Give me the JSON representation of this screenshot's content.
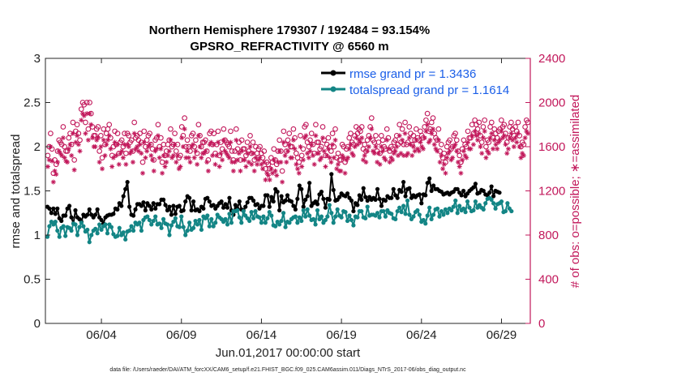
{
  "chart_data": {
    "type": "line",
    "title_line1": "Northern Hemisphere 179307 / 192484 = 93.154%",
    "title_line2": "GPSRO_REFRACTIVITY @ 6560 m",
    "xlabel": "Jun.01,2017 00:00:00 start",
    "ylabel_left": "rmse and totalspread",
    "ylabel_right": "# of obs: o=possible; ∗=assimilated",
    "footnote": "data file: /Users/raeder/DAI/ATM_forcXX/CAM6_setup/f.e21.FHIST_BGC.f09_025.CAM6assim.011/Diags_NTrS_2017-06/obs_diag_output.nc",
    "x_range": [
      0.5,
      30.8
    ],
    "ylim_left": [
      0,
      3
    ],
    "ylim_right": [
      0,
      2400
    ],
    "x_ticks": [
      {
        "v": 4,
        "label": "06/04"
      },
      {
        "v": 9,
        "label": "06/09"
      },
      {
        "v": 14,
        "label": "06/14"
      },
      {
        "v": 19,
        "label": "06/19"
      },
      {
        "v": 24,
        "label": "06/24"
      },
      {
        "v": 29,
        "label": "06/29"
      }
    ],
    "y_ticks_left": [
      "0",
      "0.5",
      "1",
      "1.5",
      "2",
      "2.5",
      "3"
    ],
    "y_ticks_right": [
      "0",
      "400",
      "800",
      "1200",
      "1600",
      "2000",
      "2400"
    ],
    "x_start": 0.625,
    "x_step": 0.125,
    "series": [
      {
        "name": "rmse",
        "legend": "rmse grand pr = 1.3436",
        "color": "#000000",
        "values": [
          1.32,
          1.3,
          1.25,
          1.3,
          1.24,
          1.3,
          1.19,
          1.16,
          1.22,
          1.22,
          1.3,
          1.33,
          1.2,
          1.13,
          1.28,
          1.2,
          1.18,
          1.15,
          1.23,
          1.21,
          1.23,
          1.29,
          1.23,
          1.2,
          1.23,
          1.29,
          1.2,
          1.17,
          1.13,
          1.2,
          1.22,
          1.23,
          1.23,
          1.24,
          1.3,
          1.29,
          1.36,
          1.33,
          1.44,
          1.52,
          1.6,
          1.32,
          1.23,
          1.22,
          1.29,
          1.35,
          1.35,
          1.33,
          1.37,
          1.28,
          1.36,
          1.33,
          1.29,
          1.36,
          1.3,
          1.35,
          1.35,
          1.4,
          1.4,
          1.34,
          1.28,
          1.32,
          1.23,
          1.33,
          1.24,
          1.32,
          1.33,
          1.27,
          1.28,
          1.38,
          1.44,
          1.42,
          1.28,
          1.38,
          1.28,
          1.29,
          1.27,
          1.32,
          1.3,
          1.41,
          1.42,
          1.38,
          1.33,
          1.34,
          1.3,
          1.33,
          1.36,
          1.38,
          1.31,
          1.35,
          1.31,
          1.42,
          1.28,
          1.23,
          1.34,
          1.3,
          1.38,
          1.29,
          1.28,
          1.32,
          1.37,
          1.42,
          1.42,
          1.39,
          1.34,
          1.35,
          1.3,
          1.33,
          1.33,
          1.45,
          1.45,
          1.32,
          1.43,
          1.38,
          1.52,
          1.49,
          1.28,
          1.44,
          1.37,
          1.39,
          1.45,
          1.39,
          1.38,
          1.33,
          1.29,
          1.41,
          1.56,
          1.52,
          1.32,
          1.4,
          1.44,
          1.59,
          1.33,
          1.36,
          1.38,
          1.35,
          1.46,
          1.49,
          1.41,
          1.31,
          1.41,
          1.4,
          1.69,
          1.51,
          1.39,
          1.4,
          1.43,
          1.47,
          1.45,
          1.44,
          1.47,
          1.42,
          1.39,
          1.27,
          1.36,
          1.34,
          1.45,
          1.4,
          1.53,
          1.43,
          1.39,
          1.43,
          1.4,
          1.42,
          1.4,
          1.52,
          1.41,
          1.33,
          1.4,
          1.39,
          1.44,
          1.42,
          1.42,
          1.52,
          1.45,
          1.42,
          1.51,
          1.49,
          1.6,
          1.44,
          1.52,
          1.53,
          1.42,
          1.45,
          1.43,
          1.45,
          1.46,
          1.36,
          1.46,
          1.45,
          1.59,
          1.64,
          1.5,
          1.56,
          1.52,
          1.52,
          1.5,
          1.49,
          1.46,
          1.47,
          1.48,
          1.46,
          1.48,
          1.49,
          1.52,
          1.52,
          1.48,
          1.45,
          1.5,
          1.44,
          1.47,
          1.5,
          1.52,
          1.54,
          1.58,
          1.47,
          1.48,
          1.51,
          1.5,
          1.46,
          1.45,
          1.48,
          1.55,
          1.44,
          1.5,
          1.49,
          1.48
        ]
      },
      {
        "name": "totalspread",
        "legend": "totalspread grand pr = 1.1614",
        "color": "#138585",
        "values": [
          0.98,
          1.1,
          1.15,
          1.12,
          1.15,
          1.05,
          0.98,
          1.08,
          1.1,
          0.99,
          1.09,
          1.08,
          1.05,
          1.13,
          1.12,
          1.0,
          1.09,
          1.14,
          1.1,
          1.04,
          1.06,
          0.92,
          1.0,
          1.05,
          1.07,
          1.02,
          1.12,
          1.06,
          1.1,
          1.12,
          1.02,
          1.12,
          1.09,
          1.01,
          0.98,
          0.99,
          1.08,
          1.0,
          1.03,
          0.95,
          1.04,
          1.05,
          1.1,
          1.05,
          1.14,
          1.12,
          1.14,
          1.05,
          1.17,
          1.2,
          1.21,
          1.17,
          1.12,
          1.16,
          1.21,
          1.12,
          1.13,
          1.08,
          1.18,
          1.13,
          1.12,
          1.0,
          1.11,
          1.15,
          1.19,
          1.1,
          1.09,
          1.21,
          1.09,
          1.0,
          1.05,
          1.14,
          1.06,
          1.08,
          1.16,
          1.12,
          1.17,
          1.06,
          1.21,
          1.19,
          1.22,
          1.1,
          1.18,
          1.1,
          1.14,
          1.23,
          1.2,
          1.18,
          1.15,
          1.18,
          1.12,
          1.24,
          1.14,
          1.27,
          1.27,
          1.28,
          1.2,
          1.14,
          1.27,
          1.22,
          1.19,
          1.16,
          1.26,
          1.19,
          1.27,
          1.21,
          1.2,
          1.14,
          1.21,
          1.14,
          1.19,
          1.26,
          1.22,
          1.11,
          1.1,
          1.15,
          1.12,
          1.16,
          1.25,
          1.09,
          1.15,
          1.14,
          1.18,
          1.2,
          1.21,
          1.14,
          1.2,
          1.16,
          1.28,
          1.21,
          1.29,
          1.22,
          1.17,
          1.18,
          1.12,
          1.28,
          1.18,
          1.21,
          1.14,
          1.17,
          1.21,
          1.34,
          1.25,
          1.14,
          1.21,
          1.29,
          1.22,
          1.2,
          1.27,
          1.26,
          1.16,
          1.22,
          1.17,
          1.11,
          1.21,
          1.2,
          1.27,
          1.27,
          1.2,
          1.19,
          1.32,
          1.22,
          1.23,
          1.23,
          1.22,
          1.25,
          1.2,
          1.27,
          1.27,
          1.21,
          1.28,
          1.25,
          1.24,
          1.19,
          1.18,
          1.27,
          1.31,
          1.26,
          1.33,
          1.24,
          1.39,
          1.23,
          1.18,
          1.21,
          1.26,
          1.28,
          1.23,
          1.15,
          1.17,
          1.13,
          1.22,
          1.31,
          1.18,
          1.23,
          1.29,
          1.3,
          1.21,
          1.27,
          1.23,
          1.29,
          1.25,
          1.3,
          1.28,
          1.32,
          1.39,
          1.25,
          1.33,
          1.28,
          1.3,
          1.26,
          1.38,
          1.31,
          1.27,
          1.28,
          1.38,
          1.31,
          1.34,
          1.31,
          1.29,
          1.36,
          1.41,
          1.42,
          1.4,
          1.36,
          1.3,
          1.35,
          1.36,
          1.38,
          1.26,
          1.27,
          1.36,
          1.3,
          1.27
        ]
      }
    ],
    "obs_possible": [
      1520,
      1600,
      1720,
      1580,
      1360,
      1480,
      1440,
      1560,
      1660,
      1640,
      1620,
      1780,
      1600,
      1560,
      1560,
      1680,
      1720,
      1620,
      1820,
      1480,
      1740,
      1800,
      1720,
      1660,
      1940,
      2000,
      1980,
      1820,
      2000,
      1760,
      2000,
      1900,
      1780,
      1700,
      1700,
      1760,
      1780,
      1560,
      1700,
      1500,
      1760,
      1620,
      1720,
      1760,
      1800,
      1680,
      1520,
      1600,
      1740,
      1620,
      1720,
      1540,
      1640,
      1660,
      1600,
      1720,
      1540,
      1720,
      1700,
      1640,
      1660,
      1560,
      1820,
      1680,
      1700,
      1660,
      1720,
      1640,
      1460,
      1740,
      1600,
      1660,
      1700,
      1720,
      1620,
      1580,
      1480,
      1660,
      1680,
      1800,
      1600,
      1680,
      1460,
      1620,
      1520,
      1560,
      1620,
      1660,
      1760,
      1600,
      1620,
      1720,
      1560,
      1620,
      1500,
      1520,
      1780,
      1700,
      1860,
      1600,
      1660,
      1600,
      1560,
      1700,
      1720,
      1600,
      1660,
      1540,
      1800,
      1700,
      1600,
      1640,
      1640,
      1660,
      1560,
      1480,
      1720,
      1740,
      1620,
      1720,
      1540,
      1620,
      1740,
      1520,
      1640,
      1580,
      1760,
      1660,
      1640,
      1620,
      1600,
      1740,
      1560,
      1480,
      1560,
      1760,
      1580,
      1640,
      1480,
      1660,
      1580,
      1580,
      1520,
      1640,
      1560,
      1700,
      1540,
      1640,
      1480,
      1600,
      1540,
      1580,
      1600,
      1540,
      1500,
      1560,
      1400,
      1460,
      1440,
      1400,
      1500,
      1460,
      1580,
      1480,
      1440,
      1560,
      1660,
      1560,
      1380,
      1740,
      1620,
      1560,
      1660,
      1720,
      1600,
      1600,
      1760,
      1680,
      1540,
      1500,
      1460,
      1700,
      1520,
      1580,
      1780,
      1800,
      1640,
      1600,
      1660,
      1720,
      1620,
      1540,
      1800,
      1640,
      1640,
      1580,
      1600,
      1780,
      1660,
      1520,
      1620,
      1680,
      1600,
      1560,
      1720,
      1600,
      1760,
      1500,
      1540,
      1480,
      1480,
      1620,
      1600,
      1460,
      1580,
      1600,
      1680,
      1720,
      1640,
      1620,
      1700,
      1780,
      1720,
      1760,
      1740,
      1780,
      1580,
      1620,
      1560,
      1660,
      1700,
      1780,
      1860,
      1660,
      1640,
      1700,
      1560,
      1640,
      1540,
      1700,
      1660,
      1600,
      1580,
      1760,
      1680,
      1560,
      1600,
      1580,
      1640,
      1660,
      1700,
      1620,
      1800,
      1640,
      1760,
      1620,
      1820,
      1620,
      1640,
      1780,
      1720,
      1620,
      1700,
      1660,
      1760,
      1680,
      1660,
      1740,
      1700,
      1680,
      1780,
      1840,
      1900,
      1740,
      1760,
      1820,
      1860,
      1720,
      1680,
      1660,
      1760,
      1560,
      1620,
      1500,
      1540,
      1460,
      1600,
      1640,
      1660,
      1580,
      1600,
      1700,
      1720,
      1660,
      1560,
      1520,
      1460,
      1580,
      1660,
      1620,
      1600,
      1740,
      1680,
      1680,
      1800,
      1720,
      1840,
      1800,
      1760,
      1820,
      1700,
      1640,
      1780,
      1840,
      1600,
      1660,
      1640,
      1780,
      1820,
      1680,
      1760,
      1720,
      1680,
      1740,
      1760,
      1840,
      1780,
      1800,
      1720,
      1640,
      1680,
      1780,
      1820,
      1760,
      1700,
      1780,
      1740,
      1820,
      1700,
      1600,
      1640,
      1620,
      1780,
      1840,
      1820
    ],
    "obs_assimilated": [
      1420,
      1480,
      1600,
      1470,
      1280,
      1380,
      1350,
      1460,
      1560,
      1540,
      1520,
      1680,
      1500,
      1470,
      1460,
      1580,
      1620,
      1520,
      1720,
      1390,
      1640,
      1700,
      1620,
      1560,
      1840,
      1900,
      1880,
      1720,
      1900,
      1660,
      1900,
      1800,
      1680,
      1600,
      1600,
      1660,
      1680,
      1460,
      1600,
      1400,
      1660,
      1520,
      1620,
      1660,
      1700,
      1580,
      1420,
      1500,
      1640,
      1520,
      1620,
      1440,
      1540,
      1560,
      1500,
      1620,
      1440,
      1620,
      1600,
      1540,
      1560,
      1460,
      1720,
      1580,
      1600,
      1560,
      1620,
      1540,
      1360,
      1640,
      1500,
      1560,
      1600,
      1620,
      1520,
      1480,
      1380,
      1560,
      1580,
      1700,
      1500,
      1580,
      1360,
      1520,
      1420,
      1460,
      1520,
      1560,
      1660,
      1500,
      1520,
      1620,
      1460,
      1520,
      1400,
      1420,
      1680,
      1600,
      1760,
      1500,
      1560,
      1500,
      1460,
      1600,
      1620,
      1500,
      1560,
      1440,
      1700,
      1600,
      1500,
      1540,
      1540,
      1560,
      1460,
      1380,
      1620,
      1640,
      1520,
      1620,
      1440,
      1520,
      1640,
      1420,
      1540,
      1480,
      1660,
      1560,
      1540,
      1520,
      1500,
      1640,
      1460,
      1380,
      1460,
      1660,
      1480,
      1540,
      1380,
      1560,
      1480,
      1480,
      1420,
      1540,
      1460,
      1600,
      1440,
      1540,
      1380,
      1500,
      1440,
      1480,
      1500,
      1440,
      1400,
      1460,
      1300,
      1360,
      1340,
      1300,
      1400,
      1360,
      1480,
      1380,
      1340,
      1460,
      1560,
      1460,
      1280,
      1640,
      1520,
      1460,
      1560,
      1620,
      1500,
      1500,
      1660,
      1580,
      1440,
      1400,
      1360,
      1600,
      1420,
      1480,
      1680,
      1700,
      1540,
      1500,
      1560,
      1620,
      1520,
      1440,
      1700,
      1540,
      1540,
      1480,
      1500,
      1680,
      1560,
      1420,
      1520,
      1580,
      1500,
      1460,
      1620,
      1500,
      1660,
      1400,
      1440,
      1380,
      1380,
      1520,
      1500,
      1360,
      1480,
      1500,
      1580,
      1620,
      1540,
      1520,
      1600,
      1680,
      1620,
      1660,
      1640,
      1680,
      1480,
      1520,
      1460,
      1560,
      1600,
      1680,
      1760,
      1560,
      1540,
      1600,
      1460,
      1540,
      1440,
      1600,
      1560,
      1500,
      1480,
      1660,
      1580,
      1460,
      1500,
      1480,
      1540,
      1560,
      1600,
      1520,
      1700,
      1540,
      1660,
      1520,
      1720,
      1520,
      1540,
      1680,
      1620,
      1520,
      1600,
      1560,
      1660,
      1580,
      1560,
      1640,
      1600,
      1580,
      1680,
      1740,
      1800,
      1640,
      1660,
      1720,
      1760,
      1620,
      1580,
      1560,
      1660,
      1460,
      1520,
      1400,
      1440,
      1360,
      1500,
      1540,
      1560,
      1480,
      1500,
      1600,
      1620,
      1560,
      1460,
      1420,
      1360,
      1480,
      1560,
      1520,
      1500,
      1640,
      1580,
      1580,
      1700,
      1620,
      1740,
      1700,
      1660,
      1720,
      1600,
      1540,
      1680,
      1740,
      1500,
      1560,
      1540,
      1680,
      1720,
      1580,
      1660,
      1620,
      1580,
      1640,
      1660,
      1740,
      1680,
      1700,
      1620,
      1540,
      1580,
      1680,
      1720,
      1660,
      1600,
      1680,
      1640,
      1720,
      1600,
      1500,
      1540,
      1520,
      1680,
      1740,
      1720
    ]
  }
}
